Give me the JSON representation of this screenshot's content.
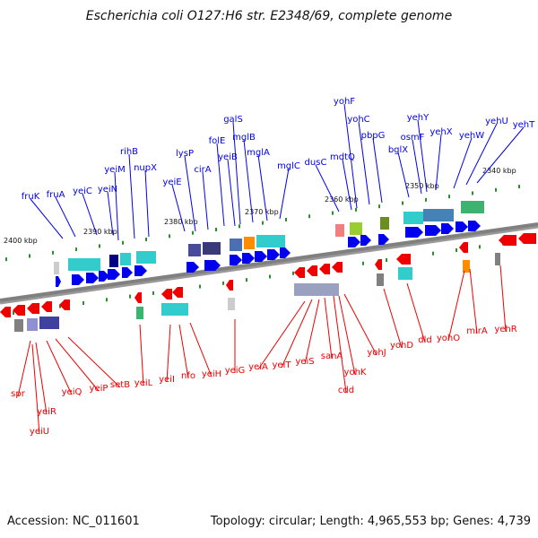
{
  "title": "Escherichia coli O127:H6 str. E2348/69, complete genome",
  "footer": {
    "accession": "Accession: NC_011601",
    "summary": "Topology: circular; Length: 4,965,553 bp; Genes: 4,739"
  },
  "colors": {
    "forward_strand": "#0000ee",
    "reverse_strand": "#ee0000",
    "backbone": "#808080",
    "marker": "#2e8b2e"
  },
  "ticks": [
    "2400 kbp",
    "2390 kbp",
    "2380 kbp",
    "2370 kbp",
    "2360 kbp",
    "2350 kbp",
    "2340 kbp"
  ],
  "forward_genes": [
    "fruK",
    "fruA",
    "yeiC",
    "yeiN",
    "yeiM",
    "rihB",
    "nupX",
    "yeiE",
    "lysP",
    "cirA",
    "folE",
    "yeiB",
    "galS",
    "mglB",
    "mglA",
    "mglC",
    "dusC",
    "mdtQ",
    "yohF",
    "yohC",
    "pbpG",
    "bglX",
    "yehY",
    "osmF",
    "yehX",
    "yehW",
    "yehU",
    "yehT"
  ],
  "reverse_genes": [
    "spr",
    "yeiR",
    "yeiU",
    "yeiQ",
    "yeiP",
    "setB",
    "yeiL",
    "yeiI",
    "nfo",
    "yeiH",
    "yeiG",
    "yeiA",
    "yeiT",
    "yeiS",
    "sanA",
    "cdd",
    "yohK",
    "yohJ",
    "yohD",
    "dld",
    "yohO",
    "mlrA",
    "yehR"
  ]
}
